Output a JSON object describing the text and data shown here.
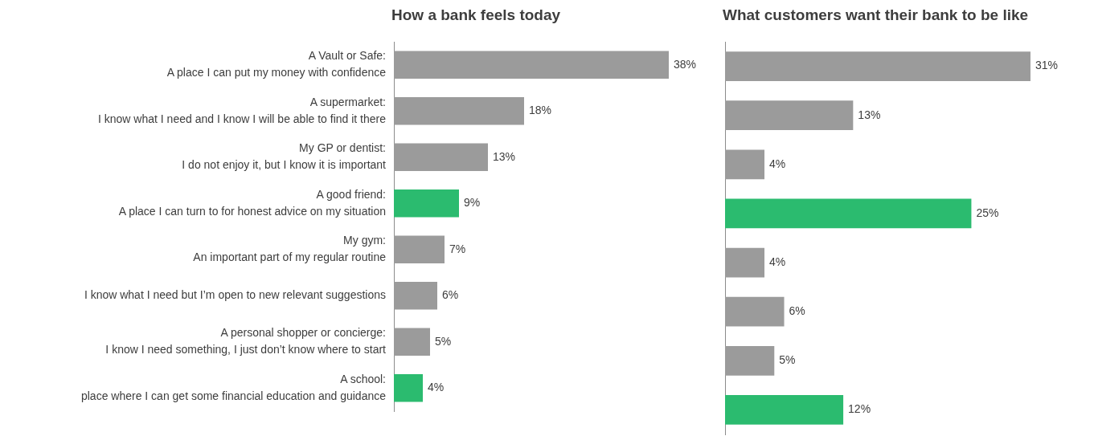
{
  "chart_data": [
    {
      "type": "bar",
      "orientation": "horizontal",
      "title": "How a bank feels today",
      "categories": [
        "A Vault or Safe:\nA place I can put my money with confidence",
        "A supermarket:\nI know what I need and I know I will be able to find it there",
        "My GP or dentist:\nI do not enjoy it, but I know it is important",
        "A good friend:\nA place I can turn to for honest advice on my situation",
        "My gym:\nAn important part of my regular routine",
        "I know what I need but I’m open to new relevant suggestions",
        "A personal shopper or concierge:\nI know I need something, I just don’t know where to start",
        "A school:\nplace where I can get some financial education and guidance"
      ],
      "values": [
        38,
        18,
        13,
        9,
        7,
        6,
        5,
        4
      ],
      "value_labels": [
        "38%",
        "18%",
        "13%",
        "9%",
        "7%",
        "6%",
        "5%",
        "4%"
      ],
      "colors": [
        "#9b9b9b",
        "#9b9b9b",
        "#9b9b9b",
        "#2bbb6f",
        "#9b9b9b",
        "#9b9b9b",
        "#9b9b9b",
        "#2bbb6f"
      ]
    },
    {
      "type": "bar",
      "orientation": "horizontal",
      "title": "What customers want their bank to be like",
      "tick_labels": false,
      "categories": [
        null,
        null,
        null,
        null,
        null,
        null,
        null,
        null
      ],
      "values": [
        31,
        13,
        4,
        25,
        4,
        6,
        5,
        12
      ],
      "value_labels": [
        "31%",
        "13%",
        "4%",
        "25%",
        "4%",
        "6%",
        "5%",
        "12%"
      ],
      "colors": [
        "#9b9b9b",
        "#9b9b9b",
        "#9b9b9b",
        "#2bbb6f",
        "#9b9b9b",
        "#9b9b9b",
        "#9b9b9b",
        "#2bbb6f"
      ]
    }
  ]
}
